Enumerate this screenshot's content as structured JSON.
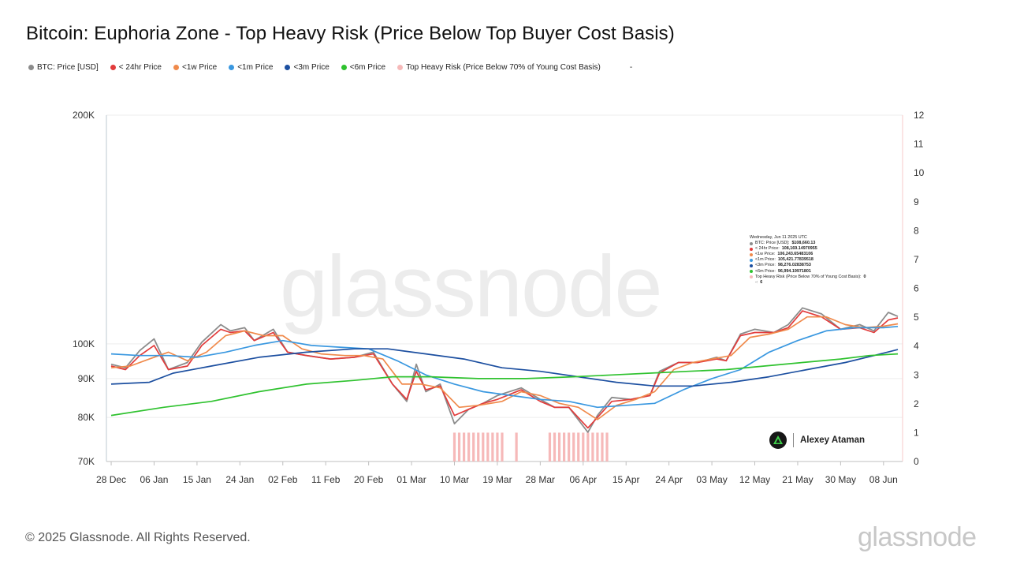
{
  "title": "Bitcoin: Euphoria Zone - Top Heavy Risk (Price Below Top Buyer Cost Basis)",
  "legend": [
    {
      "label": "BTC: Price [USD]",
      "color": "#8c8c8c"
    },
    {
      "label": "< 24hr Price",
      "color": "#e23b3b"
    },
    {
      "label": "<1w Price",
      "color": "#f08a4b"
    },
    {
      "label": "<1m Price",
      "color": "#3a98e0"
    },
    {
      "label": "<3m Price",
      "color": "#1c4fa0"
    },
    {
      "label": "<6m Price",
      "color": "#2fc22f"
    },
    {
      "label": "Top Heavy Risk (Price Below 70% of Young Cost Basis)",
      "color": "#f6b9b9"
    },
    {
      "label": "-",
      "color": ""
    }
  ],
  "watermark": "glassnode",
  "footer": "© 2025 Glassnode. All Rights Reserved.",
  "brand": "glassnode",
  "author": "Alexey Ataman",
  "tooltip": {
    "date": "Wednesday, Jun 11 2025 UTC",
    "rows": [
      {
        "label": "BTC: Price [USD]:",
        "value": "$108,660.13",
        "color": "#8c8c8c"
      },
      {
        "label": "< 24hr Price:",
        "value": "108,169.14970955",
        "color": "#e23b3b"
      },
      {
        "label": "<1w Price:",
        "value": "106,243.65483106",
        "color": "#f08a4b"
      },
      {
        "label": "<1m Price:",
        "value": "105,421.77839518",
        "color": "#3a98e0"
      },
      {
        "label": "<3m Price:",
        "value": "98,276.02838753",
        "color": "#1c4fa0"
      },
      {
        "label": "<6m Price:",
        "value": "96,994.19971801",
        "color": "#2fc22f"
      },
      {
        "label": "Top Heavy Risk (Price Below 70% of Young Cost Basis):",
        "value": "0",
        "color": "#f6b9b9"
      },
      {
        "label": "-:",
        "value": "6",
        "color": ""
      }
    ]
  },
  "chart_data": {
    "type": "line",
    "x_type": "date",
    "x_ticks": [
      "28 Dec",
      "06 Jan",
      "15 Jan",
      "24 Jan",
      "02 Feb",
      "11 Feb",
      "20 Feb",
      "01 Mar",
      "10 Mar",
      "19 Mar",
      "28 Mar",
      "06 Apr",
      "15 Apr",
      "24 Apr",
      "03 May",
      "12 May",
      "21 May",
      "30 May",
      "08 Jun"
    ],
    "x_range": [
      "2024-12-27",
      "2025-06-12"
    ],
    "y_left": {
      "scale": "log",
      "range": [
        70000,
        200000
      ],
      "ticks": [
        70000,
        80000,
        90000,
        100000,
        200000
      ],
      "tick_labels": [
        "70K",
        "80K",
        "90K",
        "100K",
        "200K"
      ]
    },
    "y_right": {
      "range": [
        0,
        12
      ],
      "ticks": [
        0,
        1,
        2,
        3,
        4,
        5,
        6,
        7,
        8,
        9,
        10,
        11,
        12
      ]
    },
    "series": [
      {
        "name": "BTC: Price [USD]",
        "color": "#8c8c8c",
        "axis": "left",
        "points": [
          [
            "2024-12-28",
            94000
          ],
          [
            "2024-12-31",
            93000
          ],
          [
            "2025-01-03",
            98000
          ],
          [
            "2025-01-06",
            101500
          ],
          [
            "2025-01-09",
            92500
          ],
          [
            "2025-01-13",
            94500
          ],
          [
            "2025-01-16",
            100500
          ],
          [
            "2025-01-20",
            106000
          ],
          [
            "2025-01-22",
            104000
          ],
          [
            "2025-01-25",
            105000
          ],
          [
            "2025-01-27",
            101000
          ],
          [
            "2025-01-31",
            104500
          ],
          [
            "2025-02-03",
            97500
          ],
          [
            "2025-02-07",
            96500
          ],
          [
            "2025-02-12",
            95500
          ],
          [
            "2025-02-17",
            96000
          ],
          [
            "2025-02-21",
            97500
          ],
          [
            "2025-02-25",
            88500
          ],
          [
            "2025-02-28",
            84000
          ],
          [
            "2025-03-02",
            94000
          ],
          [
            "2025-03-04",
            86500
          ],
          [
            "2025-03-07",
            88500
          ],
          [
            "2025-03-10",
            78500
          ],
          [
            "2025-03-13",
            82000
          ],
          [
            "2025-03-16",
            83500
          ],
          [
            "2025-03-19",
            85500
          ],
          [
            "2025-03-24",
            87500
          ],
          [
            "2025-03-28",
            84500
          ],
          [
            "2025-03-31",
            82500
          ],
          [
            "2025-04-03",
            82500
          ],
          [
            "2025-04-07",
            76500
          ],
          [
            "2025-04-09",
            80500
          ],
          [
            "2025-04-12",
            85000
          ],
          [
            "2025-04-16",
            84500
          ],
          [
            "2025-04-20",
            85500
          ],
          [
            "2025-04-22",
            92000
          ],
          [
            "2025-04-26",
            94500
          ],
          [
            "2025-04-30",
            94500
          ],
          [
            "2025-05-04",
            96000
          ],
          [
            "2025-05-06",
            95000
          ],
          [
            "2025-05-09",
            103000
          ],
          [
            "2025-05-12",
            104500
          ],
          [
            "2025-05-16",
            103500
          ],
          [
            "2025-05-19",
            106000
          ],
          [
            "2025-05-22",
            111500
          ],
          [
            "2025-05-26",
            109500
          ],
          [
            "2025-05-30",
            104500
          ],
          [
            "2025-06-03",
            106000
          ],
          [
            "2025-06-06",
            104000
          ],
          [
            "2025-06-09",
            110000
          ],
          [
            "2025-06-11",
            108660
          ]
        ]
      },
      {
        "name": "< 24hr Price",
        "color": "#e23b3b",
        "axis": "left",
        "points": [
          [
            "2024-12-28",
            93500
          ],
          [
            "2024-12-31",
            92500
          ],
          [
            "2025-01-03",
            96500
          ],
          [
            "2025-01-06",
            99500
          ],
          [
            "2025-01-09",
            92500
          ],
          [
            "2025-01-13",
            93500
          ],
          [
            "2025-01-16",
            99500
          ],
          [
            "2025-01-20",
            104500
          ],
          [
            "2025-01-22",
            103500
          ],
          [
            "2025-01-25",
            104000
          ],
          [
            "2025-01-27",
            101000
          ],
          [
            "2025-01-31",
            103500
          ],
          [
            "2025-02-03",
            97500
          ],
          [
            "2025-02-07",
            96500
          ],
          [
            "2025-02-12",
            95500
          ],
          [
            "2025-02-17",
            96000
          ],
          [
            "2025-02-21",
            97000
          ],
          [
            "2025-02-25",
            88500
          ],
          [
            "2025-02-28",
            84500
          ],
          [
            "2025-03-02",
            92000
          ],
          [
            "2025-03-04",
            87000
          ],
          [
            "2025-03-07",
            88000
          ],
          [
            "2025-03-10",
            80500
          ],
          [
            "2025-03-13",
            82000
          ],
          [
            "2025-03-16",
            83500
          ],
          [
            "2025-03-19",
            84500
          ],
          [
            "2025-03-24",
            87000
          ],
          [
            "2025-03-28",
            84000
          ],
          [
            "2025-03-31",
            82500
          ],
          [
            "2025-04-03",
            82500
          ],
          [
            "2025-04-07",
            77500
          ],
          [
            "2025-04-09",
            80000
          ],
          [
            "2025-04-12",
            84000
          ],
          [
            "2025-04-16",
            84500
          ],
          [
            "2025-04-20",
            85500
          ],
          [
            "2025-04-22",
            91500
          ],
          [
            "2025-04-26",
            94500
          ],
          [
            "2025-04-30",
            94500
          ],
          [
            "2025-05-04",
            95500
          ],
          [
            "2025-05-06",
            95000
          ],
          [
            "2025-05-09",
            102500
          ],
          [
            "2025-05-12",
            103500
          ],
          [
            "2025-05-16",
            103500
          ],
          [
            "2025-05-19",
            105000
          ],
          [
            "2025-05-22",
            110500
          ],
          [
            "2025-05-26",
            108500
          ],
          [
            "2025-05-30",
            104500
          ],
          [
            "2025-06-03",
            105000
          ],
          [
            "2025-06-06",
            103500
          ],
          [
            "2025-06-09",
            107500
          ],
          [
            "2025-06-11",
            108169
          ]
        ]
      },
      {
        "name": "<1w Price",
        "color": "#f08a4b",
        "axis": "left",
        "points": [
          [
            "2024-12-28",
            93000
          ],
          [
            "2025-01-01",
            93500
          ],
          [
            "2025-01-05",
            95500
          ],
          [
            "2025-01-09",
            97500
          ],
          [
            "2025-01-13",
            95000
          ],
          [
            "2025-01-17",
            97500
          ],
          [
            "2025-01-21",
            102500
          ],
          [
            "2025-01-25",
            104000
          ],
          [
            "2025-01-29",
            102500
          ],
          [
            "2025-02-02",
            102500
          ],
          [
            "2025-02-06",
            98500
          ],
          [
            "2025-02-10",
            97000
          ],
          [
            "2025-02-15",
            96500
          ],
          [
            "2025-02-19",
            96500
          ],
          [
            "2025-02-23",
            95500
          ],
          [
            "2025-02-27",
            88500
          ],
          [
            "2025-03-03",
            88500
          ],
          [
            "2025-03-07",
            87500
          ],
          [
            "2025-03-11",
            82500
          ],
          [
            "2025-03-15",
            83000
          ],
          [
            "2025-03-20",
            84000
          ],
          [
            "2025-03-24",
            86500
          ],
          [
            "2025-03-28",
            85500
          ],
          [
            "2025-04-01",
            83500
          ],
          [
            "2025-04-05",
            82500
          ],
          [
            "2025-04-09",
            79500
          ],
          [
            "2025-04-13",
            83000
          ],
          [
            "2025-04-17",
            84500
          ],
          [
            "2025-04-21",
            86500
          ],
          [
            "2025-04-25",
            92500
          ],
          [
            "2025-04-29",
            94500
          ],
          [
            "2025-05-03",
            95500
          ],
          [
            "2025-05-07",
            96500
          ],
          [
            "2025-05-11",
            102000
          ],
          [
            "2025-05-15",
            103000
          ],
          [
            "2025-05-19",
            104500
          ],
          [
            "2025-05-23",
            108500
          ],
          [
            "2025-05-27",
            108500
          ],
          [
            "2025-05-31",
            106000
          ],
          [
            "2025-06-04",
            105000
          ],
          [
            "2025-06-08",
            105500
          ],
          [
            "2025-06-11",
            106244
          ]
        ]
      },
      {
        "name": "<1m Price",
        "color": "#3a98e0",
        "axis": "left",
        "points": [
          [
            "2024-12-28",
            97000
          ],
          [
            "2025-01-03",
            96500
          ],
          [
            "2025-01-09",
            96500
          ],
          [
            "2025-01-15",
            96000
          ],
          [
            "2025-01-21",
            97500
          ],
          [
            "2025-01-27",
            99500
          ],
          [
            "2025-02-02",
            101000
          ],
          [
            "2025-02-08",
            99500
          ],
          [
            "2025-02-14",
            99000
          ],
          [
            "2025-02-20",
            98500
          ],
          [
            "2025-02-26",
            95000
          ],
          [
            "2025-03-04",
            91000
          ],
          [
            "2025-03-10",
            88500
          ],
          [
            "2025-03-16",
            86500
          ],
          [
            "2025-03-22",
            85500
          ],
          [
            "2025-03-28",
            84500
          ],
          [
            "2025-04-03",
            84000
          ],
          [
            "2025-04-09",
            82500
          ],
          [
            "2025-04-15",
            83000
          ],
          [
            "2025-04-21",
            83500
          ],
          [
            "2025-04-27",
            87000
          ],
          [
            "2025-05-03",
            90000
          ],
          [
            "2025-05-09",
            92500
          ],
          [
            "2025-05-15",
            97500
          ],
          [
            "2025-05-21",
            101000
          ],
          [
            "2025-05-27",
            104000
          ],
          [
            "2025-06-02",
            105000
          ],
          [
            "2025-06-08",
            105000
          ],
          [
            "2025-06-11",
            105422
          ]
        ]
      },
      {
        "name": "<3m Price",
        "color": "#1c4fa0",
        "axis": "left",
        "points": [
          [
            "2024-12-28",
            88500
          ],
          [
            "2025-01-05",
            89000
          ],
          [
            "2025-01-10",
            91500
          ],
          [
            "2025-01-18",
            93500
          ],
          [
            "2025-01-28",
            96000
          ],
          [
            "2025-02-07",
            97500
          ],
          [
            "2025-02-17",
            98500
          ],
          [
            "2025-02-24",
            98500
          ],
          [
            "2025-03-04",
            97000
          ],
          [
            "2025-03-12",
            95500
          ],
          [
            "2025-03-20",
            93000
          ],
          [
            "2025-03-28",
            92000
          ],
          [
            "2025-04-05",
            90500
          ],
          [
            "2025-04-13",
            89000
          ],
          [
            "2025-04-21",
            88000
          ],
          [
            "2025-04-29",
            88000
          ],
          [
            "2025-05-07",
            89000
          ],
          [
            "2025-05-15",
            90500
          ],
          [
            "2025-05-23",
            92500
          ],
          [
            "2025-05-31",
            94500
          ],
          [
            "2025-06-06",
            96500
          ],
          [
            "2025-06-11",
            98276
          ]
        ]
      },
      {
        "name": "<6m Price",
        "color": "#2fc22f",
        "axis": "left",
        "points": [
          [
            "2024-12-28",
            80500
          ],
          [
            "2025-01-08",
            82500
          ],
          [
            "2025-01-18",
            84000
          ],
          [
            "2025-01-28",
            86500
          ],
          [
            "2025-02-07",
            88500
          ],
          [
            "2025-02-17",
            89500
          ],
          [
            "2025-02-25",
            90500
          ],
          [
            "2025-03-05",
            90500
          ],
          [
            "2025-03-15",
            90000
          ],
          [
            "2025-03-25",
            90000
          ],
          [
            "2025-04-04",
            90500
          ],
          [
            "2025-04-12",
            91000
          ],
          [
            "2025-04-20",
            91500
          ],
          [
            "2025-04-28",
            92000
          ],
          [
            "2025-05-06",
            92500
          ],
          [
            "2025-05-14",
            93500
          ],
          [
            "2025-05-22",
            94500
          ],
          [
            "2025-05-30",
            95500
          ],
          [
            "2025-06-05",
            96500
          ],
          [
            "2025-06-11",
            96994
          ]
        ]
      }
    ],
    "risk_bars": {
      "name": "Top Heavy Risk (Price Below 70% of Young Cost Basis)",
      "color": "#f6b9b9",
      "axis": "right",
      "value": 1,
      "dates": [
        "2025-03-10",
        "2025-03-11",
        "2025-03-12",
        "2025-03-13",
        "2025-03-14",
        "2025-03-15",
        "2025-03-16",
        "2025-03-17",
        "2025-03-18",
        "2025-03-19",
        "2025-03-20",
        "2025-03-23",
        "2025-03-30",
        "2025-03-31",
        "2025-04-01",
        "2025-04-02",
        "2025-04-03",
        "2025-04-04",
        "2025-04-05",
        "2025-04-06",
        "2025-04-07",
        "2025-04-08",
        "2025-04-09",
        "2025-04-10",
        "2025-04-11"
      ]
    }
  }
}
